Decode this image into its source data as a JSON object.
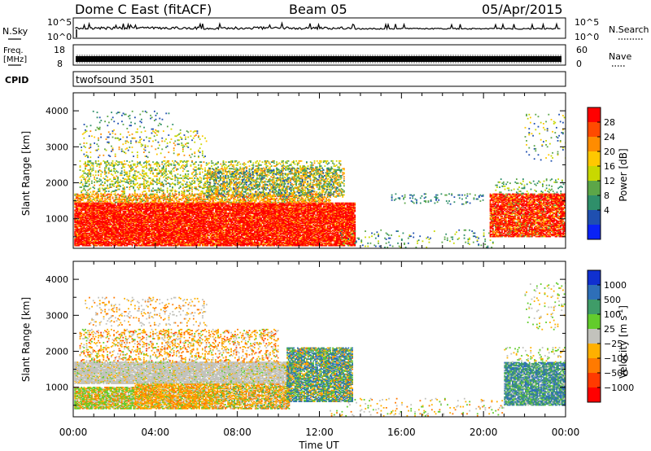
{
  "header": {
    "station": "Dome C East (fitACF)",
    "beam": "Beam 05",
    "date": "05/Apr/2015"
  },
  "meta_panels": {
    "nsky_label": "N.Sky",
    "nsky_top": "10^5",
    "nsky_bottom": "10^0",
    "nsearch_label": "N.Search",
    "freq_label_1": "Freq.",
    "freq_label_2": "[MHz]",
    "freq_top": "18",
    "freq_bottom": "8",
    "nave_top": "60",
    "nave_bottom": "0",
    "nave_label": "Nave",
    "cpid_label": "CPID",
    "cpid_value": "twofsound 3501"
  },
  "axes": {
    "xlabel": "Time UT",
    "ylabel": "Slant Range [km]",
    "x_ticks": [
      "00:00",
      "04:00",
      "08:00",
      "12:00",
      "16:00",
      "20:00",
      "00:00"
    ],
    "y_ticks": [
      "1000",
      "2000",
      "3000",
      "4000"
    ]
  },
  "colorbars": {
    "power_label": "Power [dB]",
    "power_ticks": [
      "28",
      "24",
      "20",
      "16",
      "12",
      "8",
      "4"
    ],
    "power_colors": [
      "#ff0000",
      "#ff4a00",
      "#ff8c00",
      "#ffc800",
      "#c8d800",
      "#5ca648",
      "#2f8f6a",
      "#1f4fb0",
      "#0a22f5"
    ],
    "velocity_label": "Velocity [m s",
    "velocity_label_sup": "-1",
    "velocity_label_end": "]",
    "velocity_ticks": [
      "1000",
      "500",
      "100",
      "25",
      "−25",
      "−100",
      "−500",
      "−1000"
    ],
    "velocity_colors": [
      "#1030d0",
      "#2e6fb8",
      "#3f9c68",
      "#62cc2c",
      "#c2c2bc",
      "#ffb000",
      "#ff7a00",
      "#ff3a00",
      "#ff0000"
    ]
  },
  "chart_data": [
    {
      "type": "heatmap",
      "title": "Power [dB]",
      "xlabel": "Time UT",
      "ylabel": "Slant Range [km]",
      "xlim": [
        "00:00",
        "24:00"
      ],
      "ylim": [
        180,
        4500
      ],
      "colorbar_range": [
        0,
        30
      ],
      "regions": [
        {
          "t_start": 0.0,
          "t_end": 13.7,
          "r_start": 250,
          "r_end": 1500,
          "value_db": 28
        },
        {
          "t_start": 0.0,
          "t_end": 13.0,
          "r_start": 1500,
          "r_end": 2600,
          "value_db": 12
        },
        {
          "t_start": 0.3,
          "t_end": 6.5,
          "r_start": 2700,
          "r_end": 4000,
          "value_db": 16
        },
        {
          "t_start": 20.5,
          "t_end": 24.0,
          "r_start": 500,
          "r_end": 1700,
          "value_db": 26
        }
      ]
    },
    {
      "type": "heatmap",
      "title": "Velocity [m s-1]",
      "xlabel": "Time UT",
      "ylabel": "Slant Range [km]",
      "xlim": [
        "00:00",
        "24:00"
      ],
      "ylim": [
        180,
        4500
      ],
      "colorbar_range": [
        -1000,
        1000
      ],
      "regions": [
        {
          "t_start": 0.0,
          "t_end": 6.8,
          "r_start": 400,
          "r_end": 1000,
          "value_ms": -120
        },
        {
          "t_start": 0.0,
          "t_end": 11.0,
          "r_start": 1100,
          "r_end": 1700,
          "value_ms": 0
        },
        {
          "t_start": 10.5,
          "t_end": 13.6,
          "r_start": 700,
          "r_end": 2100,
          "value_ms": 200
        },
        {
          "t_start": 21.2,
          "t_end": 24.0,
          "r_start": 500,
          "r_end": 1800,
          "value_ms": 250
        }
      ]
    }
  ]
}
